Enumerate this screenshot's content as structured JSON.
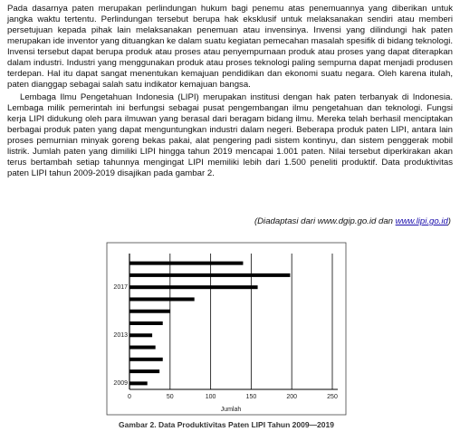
{
  "paragraphs": [
    "Pada dasarnya paten merupakan perlindungan hukum bagi penemu atas penemuannya yang diberikan untuk jangka waktu tertentu. Perlindungan tersebut berupa hak eksklusif untuk melaksanakan sendiri atau memberi persetujuan kepada pihak lain melaksanakan penemuan atau invensinya. Invensi yang dilindungi hak paten merupakan ide inventor yang dituangkan ke dalam suatu kegiatan pemecahan masalah spesifik di bidang teknologi. Invensi tersebut dapat berupa produk atau proses atau penyempurnaan produk atau proses yang dapat diterapkan dalam industri. Industri yang menggunakan produk atau proses teknologi paling sempurna dapat menjadi produsen terdepan. Hal itu dapat sangat menentukan kemajuan pendidikan dan ekonomi suatu negara. Oleh karena itulah, paten dianggap sebagai salah satu indikator kemajuan bangsa.",
    "Lembaga Ilmu Pengetahuan Indonesia (LIPI) merupakan institusi dengan hak paten terbanyak di Indonesia. Lembaga milik pemerintah ini berfungsi sebagai pusat pengembangan ilmu pengetahuan dan teknologi. Fungsi kerja LIPI didukung oleh para ilmuwan yang berasal dari beragam bidang ilmu. Mereka telah berhasil menciptakan berbagai produk paten yang dapat menguntungkan industri dalam negeri. Beberapa produk paten LIPI, antara lain proses pemurnian minyak goreng bekas pakai, alat pengering padi sistem kontinyu, dan sistem penggerak mobil listrik. Jumlah paten yang dimiliki LIPI hingga tahun 2019 mencapai 1.001 paten. Nilai tersebut diperkirakan akan terus bertambah setiap tahunnya mengingat LIPI memiliki lebih dari 1.500 peneliti produktif. Data produktivitas paten LIPI tahun 2009-2019 disajikan pada gambar 2."
  ],
  "source": {
    "prefix": "(Diadaptasi dari www.dgip.go.id dan ",
    "link": "www.lipi.go.id",
    "suffix": ")"
  },
  "chart_data": {
    "type": "barh",
    "x_label": "Jumlah",
    "categories": [
      "2009",
      null,
      null,
      null,
      "2013",
      null,
      null,
      null,
      "2017",
      null,
      null
    ],
    "values": [
      22,
      37,
      41,
      32,
      28,
      41,
      50,
      80,
      158,
      198,
      140
    ],
    "color": "#000000",
    "xlim": [
      0,
      250
    ],
    "xticks": [
      0,
      50,
      100,
      150,
      200,
      250
    ],
    "grid": true
  },
  "caption": "Gambar 2. Data Produktivitas Paten LIPI Tahun 2009—2019"
}
